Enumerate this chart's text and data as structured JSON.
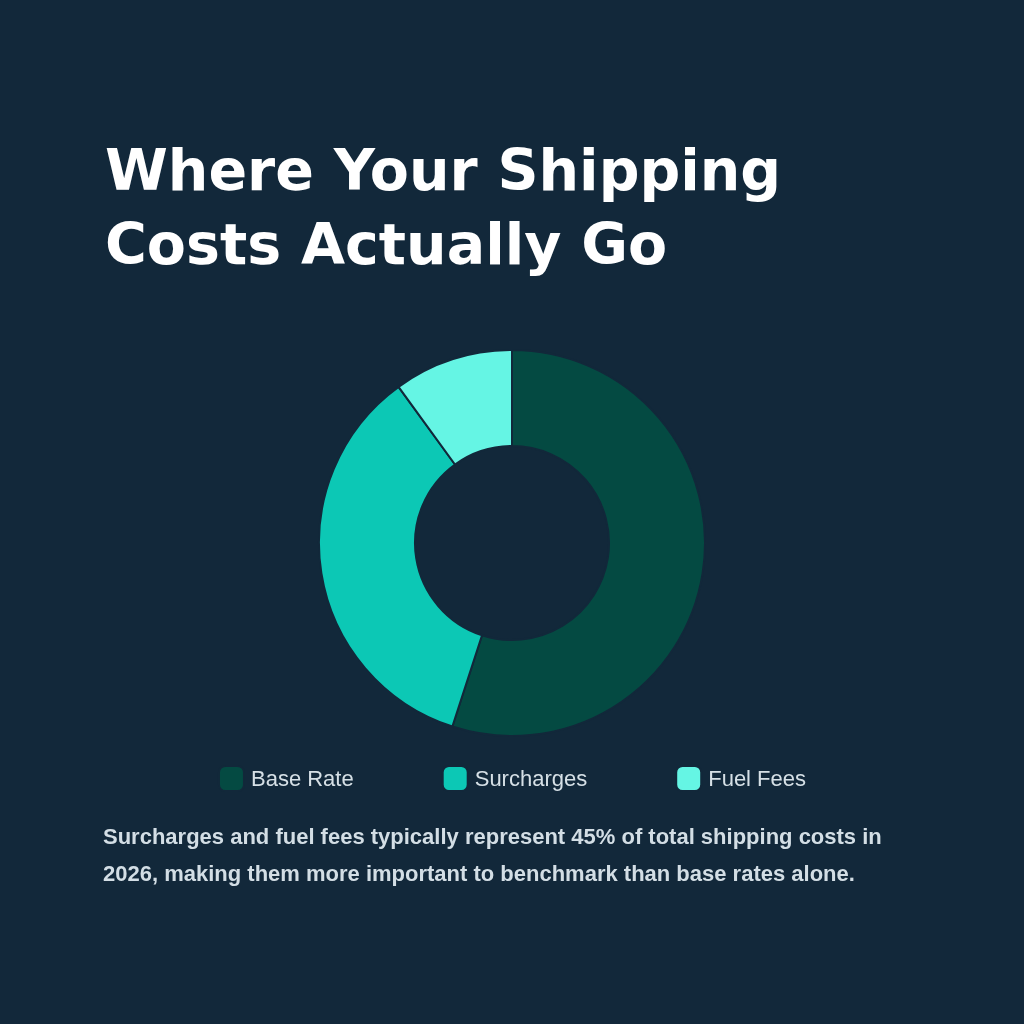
{
  "chart_data": {
    "type": "donut",
    "title": "Where Your Shipping Costs Actually Go",
    "categories": [
      "Base Rate",
      "Surcharges",
      "Fuel Fees"
    ],
    "values": [
      55,
      35,
      10
    ],
    "colors": [
      "#044a42",
      "#0cc8b5",
      "#65f5e4"
    ],
    "legend": "bottom",
    "annotations": [
      "Surcharges and fuel fees typically represent 45% of total shipping costs in 2026, making them more important to benchmark than base rates alone."
    ]
  }
}
